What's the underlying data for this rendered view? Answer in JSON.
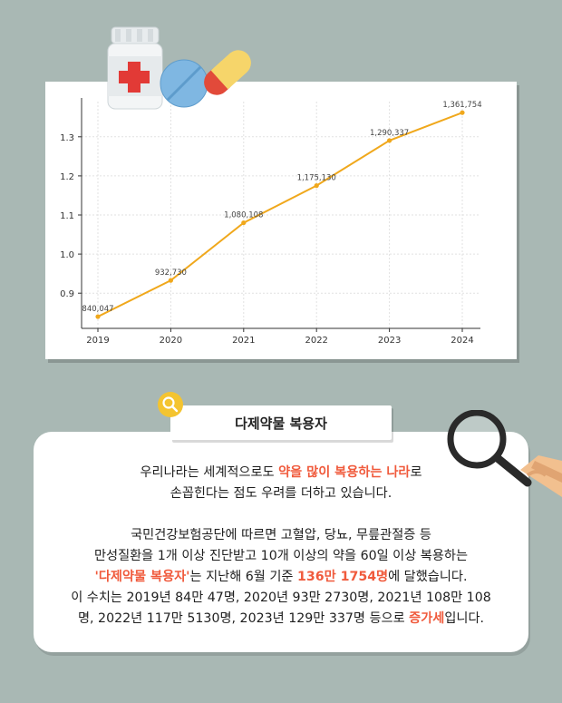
{
  "chart_data": {
    "type": "line",
    "x": [
      "2019",
      "2020",
      "2021",
      "2022",
      "2023",
      "2024"
    ],
    "values": [
      0.840047,
      0.93273,
      1.080108,
      1.17513,
      1.290337,
      1.361754
    ],
    "point_labels": [
      "840,047",
      "932,730",
      "1,080,108",
      "1,175,130",
      "1,290,337",
      "1,361,754"
    ],
    "y_ticks": [
      "0.9",
      "1.0",
      "1.1",
      "1.2",
      "1.3"
    ],
    "ylim": [
      0.81,
      1.39
    ],
    "grid": true,
    "line_color": "#f0a81c"
  },
  "section_title": "다제약물 복용자",
  "body": {
    "p1_line1_pre": "우리나라는 세계적으로도 ",
    "p1_line1_hl": "약을 많이 복용하는 나라",
    "p1_line1_post": "로",
    "p1_line2": "손꼽힌다는 점도 우려를 더하고 있습니다.",
    "p2_line1": "국민건강보험공단에 따르면 고혈압, 당뇨, 무릎관절증 등",
    "p2_line2": "만성질환을 1개 이상 진단받고 10개 이상의 약을 60일 이상 복용하는",
    "p2_line3_hl1": "'다제약물 복용자'",
    "p2_line3_mid": "는 지난해 6월 기준 ",
    "p2_line3_hl2": "136만 1754명",
    "p2_line3_post": "에 달했습니다.",
    "p2_line4": "이 수치는 2019년 84만 47명, 2020년 93만 2730명, 2021년 108만 108",
    "p2_line5_pre": "명, 2022년 117만 5130명, 2023년 129만 337명 등으로 ",
    "p2_line5_hl": "증가세",
    "p2_line5_post": "입니다."
  },
  "colors": {
    "background": "#a9b8b4",
    "highlight": "#f05a3c"
  },
  "icons": [
    "medicine-bottle-icon",
    "pill-tablet-icon",
    "capsule-icon",
    "search-icon",
    "magnifying-glass-icon"
  ]
}
